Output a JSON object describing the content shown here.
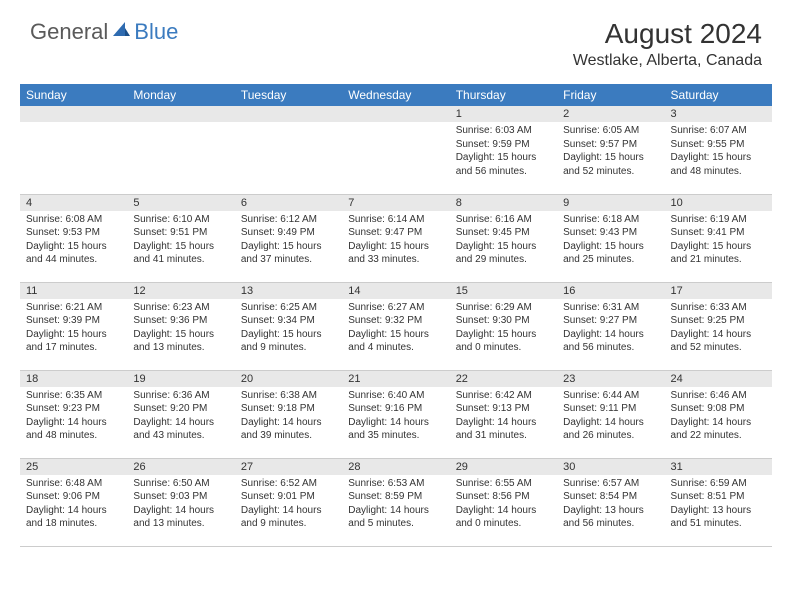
{
  "logo": {
    "general": "General",
    "blue": "Blue"
  },
  "title": "August 2024",
  "location": "Westlake, Alberta, Canada",
  "colors": {
    "header_bg": "#3b7bbf",
    "header_text": "#ffffff",
    "daynum_bg": "#e8e8e8",
    "border": "#cccccc",
    "text": "#333333"
  },
  "dayNames": [
    "Sunday",
    "Monday",
    "Tuesday",
    "Wednesday",
    "Thursday",
    "Friday",
    "Saturday"
  ],
  "weeks": [
    [
      null,
      null,
      null,
      null,
      {
        "n": "1",
        "sr": "6:03 AM",
        "ss": "9:59 PM",
        "dl": "15 hours and 56 minutes."
      },
      {
        "n": "2",
        "sr": "6:05 AM",
        "ss": "9:57 PM",
        "dl": "15 hours and 52 minutes."
      },
      {
        "n": "3",
        "sr": "6:07 AM",
        "ss": "9:55 PM",
        "dl": "15 hours and 48 minutes."
      }
    ],
    [
      {
        "n": "4",
        "sr": "6:08 AM",
        "ss": "9:53 PM",
        "dl": "15 hours and 44 minutes."
      },
      {
        "n": "5",
        "sr": "6:10 AM",
        "ss": "9:51 PM",
        "dl": "15 hours and 41 minutes."
      },
      {
        "n": "6",
        "sr": "6:12 AM",
        "ss": "9:49 PM",
        "dl": "15 hours and 37 minutes."
      },
      {
        "n": "7",
        "sr": "6:14 AM",
        "ss": "9:47 PM",
        "dl": "15 hours and 33 minutes."
      },
      {
        "n": "8",
        "sr": "6:16 AM",
        "ss": "9:45 PM",
        "dl": "15 hours and 29 minutes."
      },
      {
        "n": "9",
        "sr": "6:18 AM",
        "ss": "9:43 PM",
        "dl": "15 hours and 25 minutes."
      },
      {
        "n": "10",
        "sr": "6:19 AM",
        "ss": "9:41 PM",
        "dl": "15 hours and 21 minutes."
      }
    ],
    [
      {
        "n": "11",
        "sr": "6:21 AM",
        "ss": "9:39 PM",
        "dl": "15 hours and 17 minutes."
      },
      {
        "n": "12",
        "sr": "6:23 AM",
        "ss": "9:36 PM",
        "dl": "15 hours and 13 minutes."
      },
      {
        "n": "13",
        "sr": "6:25 AM",
        "ss": "9:34 PM",
        "dl": "15 hours and 9 minutes."
      },
      {
        "n": "14",
        "sr": "6:27 AM",
        "ss": "9:32 PM",
        "dl": "15 hours and 4 minutes."
      },
      {
        "n": "15",
        "sr": "6:29 AM",
        "ss": "9:30 PM",
        "dl": "15 hours and 0 minutes."
      },
      {
        "n": "16",
        "sr": "6:31 AM",
        "ss": "9:27 PM",
        "dl": "14 hours and 56 minutes."
      },
      {
        "n": "17",
        "sr": "6:33 AM",
        "ss": "9:25 PM",
        "dl": "14 hours and 52 minutes."
      }
    ],
    [
      {
        "n": "18",
        "sr": "6:35 AM",
        "ss": "9:23 PM",
        "dl": "14 hours and 48 minutes."
      },
      {
        "n": "19",
        "sr": "6:36 AM",
        "ss": "9:20 PM",
        "dl": "14 hours and 43 minutes."
      },
      {
        "n": "20",
        "sr": "6:38 AM",
        "ss": "9:18 PM",
        "dl": "14 hours and 39 minutes."
      },
      {
        "n": "21",
        "sr": "6:40 AM",
        "ss": "9:16 PM",
        "dl": "14 hours and 35 minutes."
      },
      {
        "n": "22",
        "sr": "6:42 AM",
        "ss": "9:13 PM",
        "dl": "14 hours and 31 minutes."
      },
      {
        "n": "23",
        "sr": "6:44 AM",
        "ss": "9:11 PM",
        "dl": "14 hours and 26 minutes."
      },
      {
        "n": "24",
        "sr": "6:46 AM",
        "ss": "9:08 PM",
        "dl": "14 hours and 22 minutes."
      }
    ],
    [
      {
        "n": "25",
        "sr": "6:48 AM",
        "ss": "9:06 PM",
        "dl": "14 hours and 18 minutes."
      },
      {
        "n": "26",
        "sr": "6:50 AM",
        "ss": "9:03 PM",
        "dl": "14 hours and 13 minutes."
      },
      {
        "n": "27",
        "sr": "6:52 AM",
        "ss": "9:01 PM",
        "dl": "14 hours and 9 minutes."
      },
      {
        "n": "28",
        "sr": "6:53 AM",
        "ss": "8:59 PM",
        "dl": "14 hours and 5 minutes."
      },
      {
        "n": "29",
        "sr": "6:55 AM",
        "ss": "8:56 PM",
        "dl": "14 hours and 0 minutes."
      },
      {
        "n": "30",
        "sr": "6:57 AM",
        "ss": "8:54 PM",
        "dl": "13 hours and 56 minutes."
      },
      {
        "n": "31",
        "sr": "6:59 AM",
        "ss": "8:51 PM",
        "dl": "13 hours and 51 minutes."
      }
    ]
  ],
  "labels": {
    "sunrise": "Sunrise:",
    "sunset": "Sunset:",
    "daylight": "Daylight:"
  }
}
